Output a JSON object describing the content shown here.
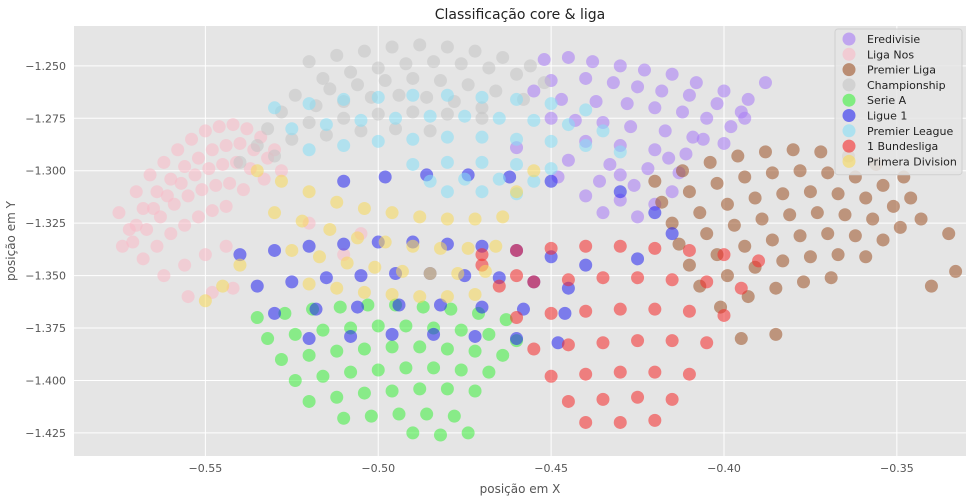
{
  "chart_data": {
    "type": "scatter",
    "title": "Classificação core & liga",
    "xlabel": "posição em X",
    "ylabel": "posição em Y",
    "xlim": [
      -0.588,
      -0.33
    ],
    "ylim": [
      -1.436,
      -1.231
    ],
    "xticks": [
      -0.55,
      -0.5,
      -0.45,
      -0.4,
      -0.35
    ],
    "xtick_labels": [
      "−0.55",
      "−0.50",
      "−0.45",
      "−0.40",
      "−0.35"
    ],
    "yticks": [
      -1.25,
      -1.275,
      -1.3,
      -1.325,
      -1.35,
      -1.375,
      -1.4,
      -1.425
    ],
    "ytick_labels": [
      "−1.250",
      "−1.275",
      "−1.300",
      "−1.325",
      "−1.350",
      "−1.375",
      "−1.400",
      "−1.425"
    ],
    "grid": true,
    "legend_position": "top-right",
    "series": [
      {
        "name": "Eredivisie",
        "color": "#a77af5",
        "x": [
          -0.452,
          -0.445,
          -0.438,
          -0.43,
          -0.423,
          -0.415,
          -0.408,
          -0.4,
          -0.393,
          -0.45,
          -0.44,
          -0.432,
          -0.425,
          -0.418,
          -0.41,
          -0.402,
          -0.395,
          -0.447,
          -0.437,
          -0.428,
          -0.42,
          -0.412,
          -0.405,
          -0.398,
          -0.443,
          -0.435,
          -0.427,
          -0.417,
          -0.409,
          -0.4,
          -0.44,
          -0.43,
          -0.42,
          -0.411,
          -0.445,
          -0.433,
          -0.422,
          -0.413,
          -0.448,
          -0.436,
          -0.426,
          -0.415,
          -0.44,
          -0.43,
          -0.42,
          -0.455,
          -0.45,
          -0.435,
          -0.425,
          -0.46,
          -0.43,
          -0.416,
          -0.406,
          -0.394,
          -0.388
        ],
        "y": [
          -1.247,
          -1.246,
          -1.248,
          -1.25,
          -1.252,
          -1.254,
          -1.258,
          -1.262,
          -1.266,
          -1.257,
          -1.256,
          -1.258,
          -1.26,
          -1.262,
          -1.264,
          -1.268,
          -1.272,
          -1.266,
          -1.267,
          -1.268,
          -1.27,
          -1.272,
          -1.275,
          -1.279,
          -1.276,
          -1.277,
          -1.279,
          -1.281,
          -1.284,
          -1.287,
          -1.286,
          -1.288,
          -1.29,
          -1.292,
          -1.295,
          -1.297,
          -1.299,
          -1.301,
          -1.303,
          -1.305,
          -1.307,
          -1.31,
          -1.312,
          -1.314,
          -1.316,
          -1.262,
          -1.275,
          -1.32,
          -1.322,
          -1.289,
          -1.302,
          -1.294,
          -1.285,
          -1.275,
          -1.258
        ]
      },
      {
        "name": "Liga Nos",
        "color": "#f9b9c6",
        "x": [
          -0.575,
          -0.57,
          -0.566,
          -0.562,
          -0.558,
          -0.554,
          -0.55,
          -0.546,
          -0.542,
          -0.538,
          -0.534,
          -0.53,
          -0.572,
          -0.568,
          -0.564,
          -0.56,
          -0.556,
          -0.552,
          -0.548,
          -0.544,
          -0.54,
          -0.536,
          -0.532,
          -0.528,
          -0.574,
          -0.57,
          -0.565,
          -0.561,
          -0.557,
          -0.553,
          -0.549,
          -0.545,
          -0.541,
          -0.537,
          -0.533,
          -0.571,
          -0.567,
          -0.563,
          -0.559,
          -0.555,
          -0.551,
          -0.547,
          -0.543,
          -0.539,
          -0.568,
          -0.564,
          -0.56,
          -0.556,
          -0.552,
          -0.548,
          -0.544,
          -0.562,
          -0.556,
          -0.55,
          -0.544,
          -0.555,
          -0.548,
          -0.542,
          -0.51,
          -0.505,
          -0.52
        ],
        "y": [
          -1.32,
          -1.31,
          -1.302,
          -1.296,
          -1.29,
          -1.285,
          -1.281,
          -1.279,
          -1.278,
          -1.28,
          -1.284,
          -1.29,
          -1.328,
          -1.318,
          -1.31,
          -1.304,
          -1.298,
          -1.294,
          -1.29,
          -1.288,
          -1.287,
          -1.29,
          -1.294,
          -1.3,
          -1.336,
          -1.326,
          -1.318,
          -1.312,
          -1.306,
          -1.302,
          -1.299,
          -1.297,
          -1.296,
          -1.299,
          -1.304,
          -1.334,
          -1.328,
          -1.322,
          -1.316,
          -1.312,
          -1.309,
          -1.307,
          -1.306,
          -1.309,
          -1.342,
          -1.336,
          -1.33,
          -1.326,
          -1.322,
          -1.319,
          -1.317,
          -1.35,
          -1.345,
          -1.34,
          -1.336,
          -1.36,
          -1.358,
          -1.356,
          -1.34,
          -1.33,
          -1.325
        ]
      },
      {
        "name": "Premier Liga",
        "color": "#9c5227",
        "x": [
          -0.42,
          -0.412,
          -0.404,
          -0.396,
          -0.388,
          -0.38,
          -0.372,
          -0.364,
          -0.356,
          -0.348,
          -0.418,
          -0.41,
          -0.402,
          -0.394,
          -0.386,
          -0.378,
          -0.37,
          -0.362,
          -0.354,
          -0.346,
          -0.415,
          -0.407,
          -0.399,
          -0.391,
          -0.383,
          -0.375,
          -0.367,
          -0.359,
          -0.351,
          -0.343,
          -0.413,
          -0.405,
          -0.397,
          -0.389,
          -0.381,
          -0.373,
          -0.365,
          -0.357,
          -0.349,
          -0.41,
          -0.402,
          -0.394,
          -0.386,
          -0.378,
          -0.37,
          -0.362,
          -0.354,
          -0.407,
          -0.399,
          -0.391,
          -0.383,
          -0.375,
          -0.367,
          -0.359,
          -0.401,
          -0.393,
          -0.385,
          -0.377,
          -0.369,
          -0.335,
          -0.333,
          -0.34,
          -0.395,
          -0.385
        ],
        "y": [
          -1.305,
          -1.3,
          -1.296,
          -1.293,
          -1.291,
          -1.29,
          -1.291,
          -1.293,
          -1.297,
          -1.303,
          -1.315,
          -1.31,
          -1.306,
          -1.303,
          -1.301,
          -1.3,
          -1.301,
          -1.303,
          -1.307,
          -1.313,
          -1.325,
          -1.32,
          -1.316,
          -1.313,
          -1.311,
          -1.31,
          -1.311,
          -1.313,
          -1.317,
          -1.323,
          -1.335,
          -1.33,
          -1.326,
          -1.323,
          -1.321,
          -1.32,
          -1.321,
          -1.323,
          -1.327,
          -1.345,
          -1.34,
          -1.336,
          -1.333,
          -1.331,
          -1.33,
          -1.331,
          -1.333,
          -1.355,
          -1.35,
          -1.346,
          -1.343,
          -1.341,
          -1.34,
          -1.341,
          -1.365,
          -1.36,
          -1.356,
          -1.353,
          -1.351,
          -1.33,
          -1.348,
          -1.355,
          -1.38,
          -1.378
        ]
      },
      {
        "name": "Championship",
        "color": "#c4c4c4",
        "x": [
          -0.52,
          -0.512,
          -0.504,
          -0.496,
          -0.488,
          -0.48,
          -0.472,
          -0.464,
          -0.456,
          -0.516,
          -0.508,
          -0.5,
          -0.492,
          -0.484,
          -0.476,
          -0.468,
          -0.46,
          -0.452,
          -0.524,
          -0.514,
          -0.506,
          -0.498,
          -0.49,
          -0.482,
          -0.474,
          -0.466,
          -0.458,
          -0.528,
          -0.518,
          -0.51,
          -0.502,
          -0.494,
          -0.486,
          -0.478,
          -0.47,
          -0.532,
          -0.52,
          -0.51,
          -0.5,
          -0.49,
          -0.48,
          -0.47,
          -0.535,
          -0.525,
          -0.515,
          -0.505,
          -0.495,
          -0.485,
          -0.54,
          -0.53
        ],
        "y": [
          -1.248,
          -1.245,
          -1.243,
          -1.241,
          -1.24,
          -1.241,
          -1.243,
          -1.246,
          -1.25,
          -1.256,
          -1.253,
          -1.251,
          -1.249,
          -1.248,
          -1.249,
          -1.251,
          -1.254,
          -1.258,
          -1.264,
          -1.261,
          -1.259,
          -1.257,
          -1.256,
          -1.257,
          -1.259,
          -1.262,
          -1.266,
          -1.272,
          -1.269,
          -1.267,
          -1.265,
          -1.264,
          -1.265,
          -1.267,
          -1.27,
          -1.28,
          -1.277,
          -1.275,
          -1.273,
          -1.272,
          -1.273,
          -1.275,
          -1.288,
          -1.285,
          -1.283,
          -1.281,
          -1.28,
          -1.281,
          -1.296,
          -1.293
        ]
      },
      {
        "name": "Serie A",
        "color": "#3cf03c",
        "x": [
          -0.535,
          -0.527,
          -0.519,
          -0.511,
          -0.503,
          -0.495,
          -0.487,
          -0.479,
          -0.471,
          -0.463,
          -0.532,
          -0.524,
          -0.516,
          -0.508,
          -0.5,
          -0.492,
          -0.484,
          -0.476,
          -0.468,
          -0.46,
          -0.528,
          -0.52,
          -0.512,
          -0.504,
          -0.496,
          -0.488,
          -0.48,
          -0.472,
          -0.464,
          -0.524,
          -0.516,
          -0.508,
          -0.5,
          -0.492,
          -0.484,
          -0.476,
          -0.468,
          -0.52,
          -0.512,
          -0.504,
          -0.496,
          -0.488,
          -0.48,
          -0.472,
          -0.51,
          -0.502,
          -0.494,
          -0.486,
          -0.478,
          -0.49,
          -0.482,
          -0.474
        ],
        "y": [
          -1.37,
          -1.368,
          -1.366,
          -1.365,
          -1.364,
          -1.364,
          -1.365,
          -1.366,
          -1.368,
          -1.371,
          -1.38,
          -1.378,
          -1.376,
          -1.375,
          -1.374,
          -1.374,
          -1.375,
          -1.376,
          -1.378,
          -1.381,
          -1.39,
          -1.388,
          -1.386,
          -1.385,
          -1.384,
          -1.384,
          -1.385,
          -1.386,
          -1.388,
          -1.4,
          -1.398,
          -1.396,
          -1.395,
          -1.394,
          -1.394,
          -1.395,
          -1.396,
          -1.41,
          -1.408,
          -1.406,
          -1.405,
          -1.404,
          -1.404,
          -1.405,
          -1.418,
          -1.417,
          -1.416,
          -1.416,
          -1.417,
          -1.425,
          -1.426,
          -1.425
        ]
      },
      {
        "name": "Ligue 1",
        "color": "#2424f0",
        "x": [
          -0.54,
          -0.53,
          -0.52,
          -0.51,
          -0.5,
          -0.49,
          -0.48,
          -0.47,
          -0.46,
          -0.45,
          -0.44,
          -0.535,
          -0.525,
          -0.515,
          -0.505,
          -0.495,
          -0.485,
          -0.475,
          -0.465,
          -0.455,
          -0.445,
          -0.53,
          -0.518,
          -0.506,
          -0.494,
          -0.482,
          -0.47,
          -0.458,
          -0.446,
          -0.52,
          -0.508,
          -0.496,
          -0.484,
          -0.472,
          -0.46,
          -0.448,
          -0.51,
          -0.498,
          -0.486,
          -0.474,
          -0.462,
          -0.45,
          -0.43,
          -0.42,
          -0.415,
          -0.425
        ],
        "y": [
          -1.34,
          -1.338,
          -1.336,
          -1.335,
          -1.334,
          -1.334,
          -1.335,
          -1.336,
          -1.338,
          -1.341,
          -1.345,
          -1.355,
          -1.353,
          -1.351,
          -1.35,
          -1.349,
          -1.349,
          -1.35,
          -1.351,
          -1.353,
          -1.356,
          -1.368,
          -1.366,
          -1.365,
          -1.364,
          -1.364,
          -1.365,
          -1.366,
          -1.368,
          -1.38,
          -1.379,
          -1.378,
          -1.378,
          -1.379,
          -1.38,
          -1.382,
          -1.305,
          -1.303,
          -1.302,
          -1.302,
          -1.303,
          -1.305,
          -1.31,
          -1.32,
          -1.33,
          -1.342
        ]
      },
      {
        "name": "Premier League",
        "color": "#87def5",
        "x": [
          -0.53,
          -0.52,
          -0.51,
          -0.5,
          -0.49,
          -0.48,
          -0.47,
          -0.46,
          -0.45,
          -0.44,
          -0.525,
          -0.515,
          -0.505,
          -0.495,
          -0.485,
          -0.475,
          -0.465,
          -0.455,
          -0.445,
          -0.435,
          -0.52,
          -0.51,
          -0.5,
          -0.49,
          -0.48,
          -0.47,
          -0.46,
          -0.45,
          -0.44,
          -0.43,
          -0.49,
          -0.48,
          -0.47,
          -0.46,
          -0.45,
          -0.485,
          -0.475,
          -0.465,
          -0.455,
          -0.48,
          -0.47,
          -0.46
        ],
        "y": [
          -1.27,
          -1.268,
          -1.266,
          -1.265,
          -1.264,
          -1.264,
          -1.265,
          -1.266,
          -1.268,
          -1.271,
          -1.28,
          -1.278,
          -1.276,
          -1.275,
          -1.274,
          -1.274,
          -1.275,
          -1.276,
          -1.278,
          -1.281,
          -1.29,
          -1.288,
          -1.286,
          -1.285,
          -1.284,
          -1.284,
          -1.285,
          -1.286,
          -1.288,
          -1.291,
          -1.297,
          -1.296,
          -1.296,
          -1.297,
          -1.299,
          -1.305,
          -1.304,
          -1.304,
          -1.305,
          -1.31,
          -1.31,
          -1.311
        ]
      },
      {
        "name": "1 Bundesliga",
        "color": "#f52a2a",
        "x": [
          -0.47,
          -0.46,
          -0.45,
          -0.44,
          -0.43,
          -0.42,
          -0.41,
          -0.4,
          -0.39,
          -0.465,
          -0.455,
          -0.445,
          -0.435,
          -0.425,
          -0.415,
          -0.405,
          -0.395,
          -0.46,
          -0.45,
          -0.44,
          -0.43,
          -0.42,
          -0.41,
          -0.4,
          -0.455,
          -0.445,
          -0.435,
          -0.425,
          -0.415,
          -0.405,
          -0.45,
          -0.44,
          -0.43,
          -0.42,
          -0.41,
          -0.445,
          -0.435,
          -0.425,
          -0.415,
          -0.44,
          -0.43,
          -0.42,
          -0.46,
          -0.47
        ],
        "y": [
          -1.34,
          -1.338,
          -1.337,
          -1.336,
          -1.336,
          -1.337,
          -1.338,
          -1.34,
          -1.343,
          -1.355,
          -1.353,
          -1.352,
          -1.351,
          -1.351,
          -1.352,
          -1.353,
          -1.356,
          -1.37,
          -1.368,
          -1.367,
          -1.366,
          -1.366,
          -1.367,
          -1.369,
          -1.385,
          -1.383,
          -1.382,
          -1.381,
          -1.381,
          -1.382,
          -1.398,
          -1.397,
          -1.396,
          -1.396,
          -1.397,
          -1.41,
          -1.409,
          -1.408,
          -1.409,
          -1.42,
          -1.42,
          -1.419,
          -1.35,
          -1.345
        ]
      },
      {
        "name": "Primera Division",
        "color": "#f7d85a",
        "x": [
          -0.535,
          -0.528,
          -0.52,
          -0.512,
          -0.504,
          -0.496,
          -0.488,
          -0.48,
          -0.472,
          -0.464,
          -0.53,
          -0.522,
          -0.514,
          -0.506,
          -0.498,
          -0.49,
          -0.482,
          -0.474,
          -0.466,
          -0.525,
          -0.517,
          -0.509,
          -0.501,
          -0.493,
          -0.485,
          -0.477,
          -0.469,
          -0.52,
          -0.512,
          -0.504,
          -0.496,
          -0.488,
          -0.48,
          -0.472,
          -0.54,
          -0.545,
          -0.55,
          -0.46,
          -0.455
        ],
        "y": [
          -1.3,
          -1.305,
          -1.31,
          -1.315,
          -1.318,
          -1.32,
          -1.322,
          -1.323,
          -1.323,
          -1.322,
          -1.32,
          -1.324,
          -1.328,
          -1.332,
          -1.334,
          -1.336,
          -1.337,
          -1.337,
          -1.336,
          -1.338,
          -1.341,
          -1.344,
          -1.346,
          -1.348,
          -1.349,
          -1.349,
          -1.348,
          -1.354,
          -1.356,
          -1.358,
          -1.359,
          -1.36,
          -1.36,
          -1.359,
          -1.345,
          -1.355,
          -1.362,
          -1.31,
          -1.3
        ]
      }
    ]
  }
}
